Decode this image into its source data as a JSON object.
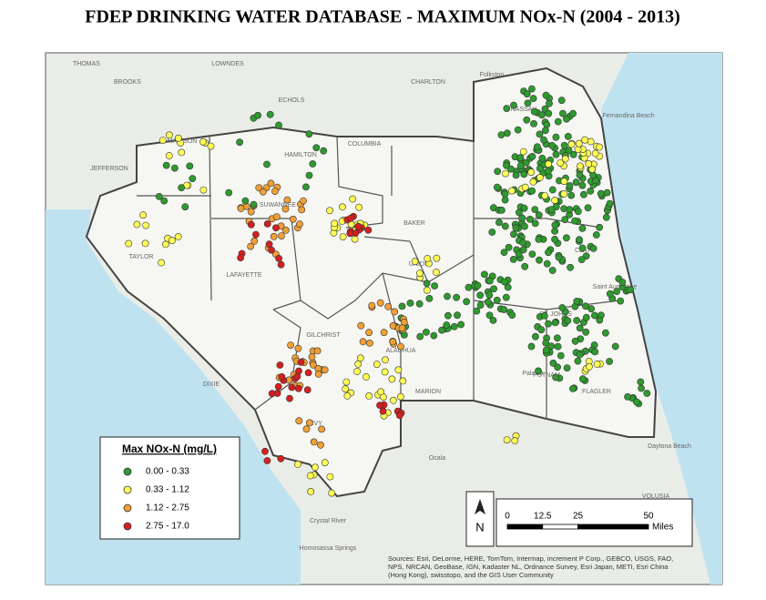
{
  "title": "FDEP DRINKING WATER DATABASE - MAXIMUM NOx-N (2004 - 2013)",
  "legend": {
    "title": "Max NOx-N (mg/L)",
    "items": [
      {
        "label": "0.00 - 0.33",
        "color": "#2f9a2f"
      },
      {
        "label": "0.33 - 1.12",
        "color": "#ffff55"
      },
      {
        "label": "1.12 - 2.75",
        "color": "#f0a035"
      },
      {
        "label": "2.75 - 17.0",
        "color": "#d42020"
      }
    ]
  },
  "scale": {
    "ticks": [
      0,
      12.5,
      25,
      50
    ],
    "unit": "Miles"
  },
  "north": "N",
  "attribution": [
    "Sources: Esri, DeLorme, HERE, TomTom, Intermap, increment P Corp., GEBCO, USGS, FAO,",
    "NPS, NRCAN, GeoBase, IGN, Kadaster NL, Ordnance Survey, Esri Japan, METI, Esri China",
    "(Hong Kong), swisstopo, and the GIS User Community"
  ],
  "places": [
    "THOMAS",
    "BROOKS",
    "LOWNDES",
    "ECHOLS",
    "CHARLTON",
    "Folkston",
    "MADISON",
    "JEFFERSON",
    "HAMILTON",
    "COLUMBIA",
    "BAKER",
    "NASSAU",
    "TAYLOR",
    "LAFAYETTE",
    "SUWANNEE",
    "UNION",
    "GILCHRIST",
    "DIXIE",
    "LEVY",
    "ALACHUA",
    "CLAY",
    "ST. JOHNS",
    "PUTNAM",
    "FLAGLER",
    "MARION",
    "VOLUSIA",
    "Fernandina Beach",
    "Saint Augustine",
    "Ocala",
    "Palatka",
    "Daytona Beach",
    "Crystal River",
    "Homosassa Springs"
  ]
}
